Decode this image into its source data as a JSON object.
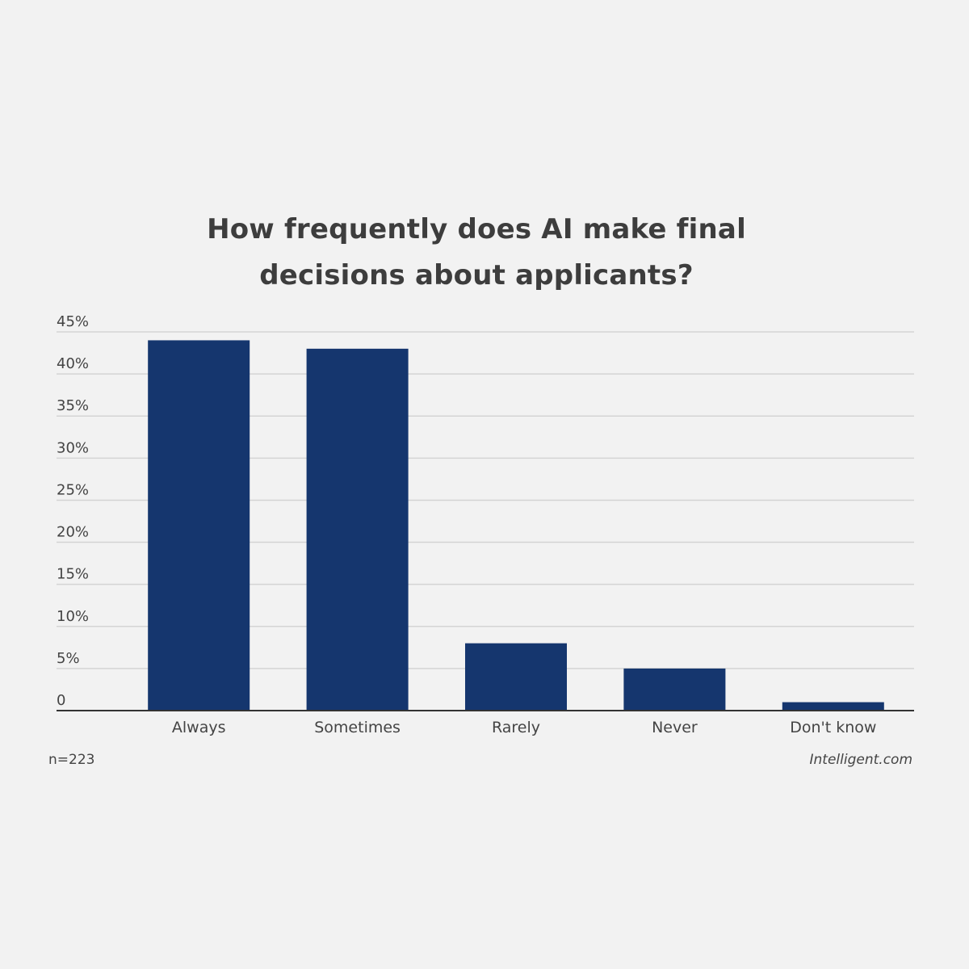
{
  "chart_data": {
    "type": "bar",
    "title": "How frequently does AI make final decisions about applicants?",
    "categories": [
      "Always",
      "Sometimes",
      "Rarely",
      "Never",
      "Don't know"
    ],
    "values": [
      44,
      43,
      8,
      5,
      1
    ],
    "unit": "%",
    "ylim": [
      0,
      45
    ],
    "yticks": [
      0,
      5,
      10,
      15,
      20,
      25,
      30,
      35,
      40,
      45
    ],
    "ytick_labels": [
      "0",
      "5%",
      "10%",
      "15%",
      "20%",
      "25%",
      "30%",
      "35%",
      "40%",
      "45%"
    ],
    "xlabel": "",
    "ylabel": "",
    "grid": true,
    "bar_color": "#15366e"
  },
  "footer": {
    "sample_size": "n=223",
    "source": "Intelligent.com"
  }
}
